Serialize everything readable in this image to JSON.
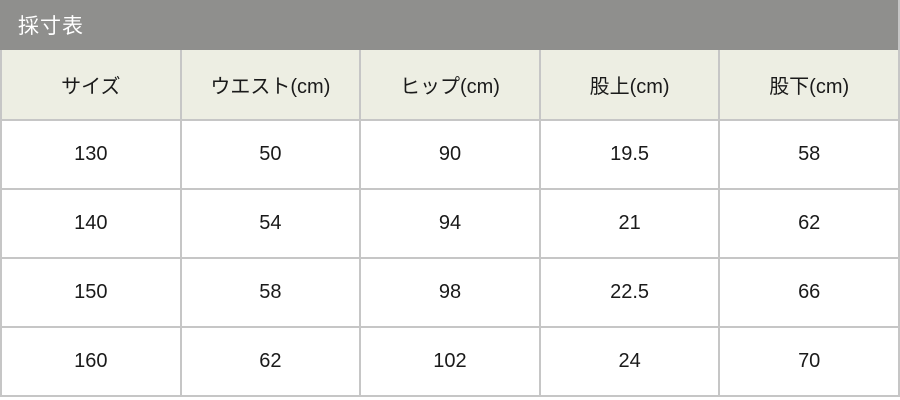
{
  "title_bar": {
    "title": "採寸表"
  },
  "chart_data": {
    "type": "table",
    "title": "採寸表",
    "columns": [
      "サイズ",
      "ウエスト(cm)",
      "ヒップ(cm)",
      "股上(cm)",
      "股下(cm)"
    ],
    "rows": [
      [
        "130",
        "50",
        "90",
        "19.5",
        "58"
      ],
      [
        "140",
        "54",
        "94",
        "21",
        "62"
      ],
      [
        "150",
        "58",
        "98",
        "22.5",
        "66"
      ],
      [
        "160",
        "62",
        "102",
        "24",
        "70"
      ]
    ]
  },
  "colors": {
    "title_bar_bg": "#8f8f8d",
    "title_text": "#ffffff",
    "header_bg": "#edeee3",
    "border": "#c6c6c6",
    "cell_text": "#1a1a1a",
    "row_bg": "#ffffff"
  }
}
